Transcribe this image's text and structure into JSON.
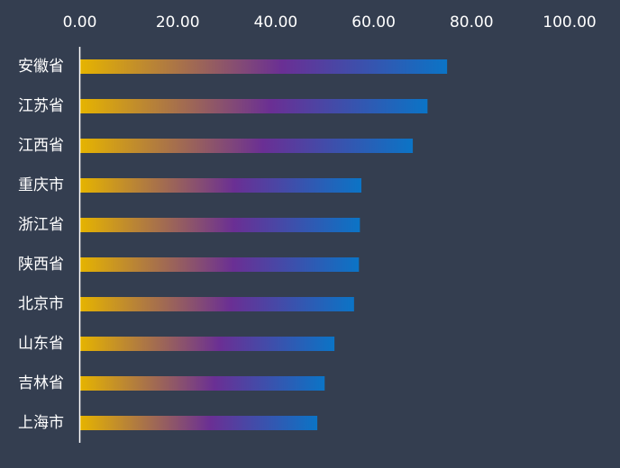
{
  "chart_data": {
    "type": "bar",
    "orientation": "horizontal",
    "categories": [
      "安徽省",
      "江苏省",
      "江西省",
      "重庆市",
      "浙江省",
      "陕西省",
      "北京市",
      "山东省",
      "吉林省",
      "上海市"
    ],
    "values": [
      75.0,
      71.0,
      68.0,
      57.5,
      57.2,
      57.0,
      56.0,
      52.0,
      50.0,
      48.5
    ],
    "x_ticks": [
      "0.00",
      "20.00",
      "40.00",
      "60.00",
      "80.00",
      "100.00"
    ],
    "xlim": [
      0,
      100
    ],
    "xaxis_position": "top",
    "grid": false,
    "legend": "none",
    "title": "",
    "xlabel": "",
    "ylabel": "",
    "colors": {
      "background": "#343e50",
      "gradient_start": "#e6b400",
      "gradient_mid": "#6a2f94",
      "gradient_end": "#0b74c6",
      "axis": "#ffffff",
      "text": "#ffffff"
    }
  }
}
